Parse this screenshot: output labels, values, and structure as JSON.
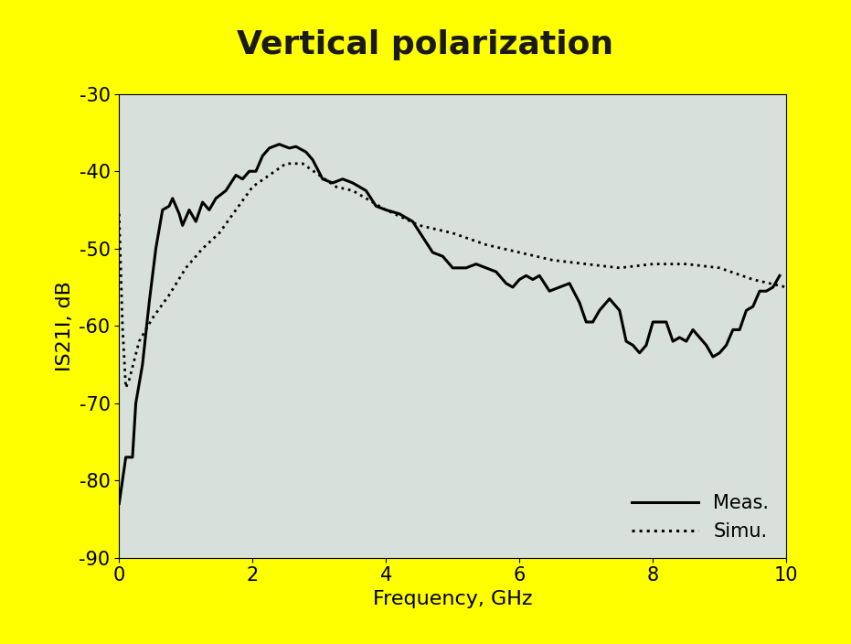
{
  "chart_data": {
    "type": "line",
    "title": "Vertical polarization",
    "x_label": "Frequency, GHz",
    "y_label": "IS21I, dB",
    "xlim": [
      0,
      10
    ],
    "xticks": [
      0,
      2,
      4,
      6,
      8,
      10
    ],
    "ylim": [
      -90,
      -30
    ],
    "yticks": [
      -90,
      -80,
      -70,
      -60,
      -50,
      -40,
      -30
    ],
    "grid": false,
    "legend": "lower right",
    "series": [
      {
        "name": "Meas.",
        "color": "#000000",
        "line_style": "solid",
        "x": [
          0,
          0.05,
          0.1,
          0.15,
          0.2,
          0.25,
          0.35,
          0.45,
          0.55,
          0.65,
          0.75,
          0.8,
          0.9,
          0.95,
          1.05,
          1.15,
          1.25,
          1.35,
          1.45,
          1.6,
          1.75,
          1.85,
          1.95,
          2.05,
          2.15,
          2.25,
          2.4,
          2.55,
          2.65,
          2.8,
          2.9,
          3.05,
          3.2,
          3.35,
          3.5,
          3.7,
          3.85,
          4.0,
          4.2,
          4.4,
          4.55,
          4.7,
          4.85,
          5.0,
          5.2,
          5.35,
          5.5,
          5.65,
          5.8,
          5.9,
          6.0,
          6.1,
          6.2,
          6.3,
          6.45,
          6.6,
          6.75,
          6.9,
          7.0,
          7.1,
          7.2,
          7.35,
          7.5,
          7.6,
          7.7,
          7.8,
          7.9,
          8.0,
          8.1,
          8.2,
          8.3,
          8.4,
          8.5,
          8.6,
          8.7,
          8.8,
          8.9,
          9.0,
          9.1,
          9.2,
          9.3,
          9.4,
          9.5,
          9.6,
          9.7,
          9.8,
          9.9
        ],
        "values": [
          -83,
          -80,
          -77,
          -77,
          -77,
          -70,
          -65,
          -57,
          -50,
          -45,
          -44.5,
          -43.5,
          -45.5,
          -47,
          -45,
          -46.5,
          -44,
          -45,
          -43.5,
          -42.5,
          -40.5,
          -41,
          -40,
          -40,
          -38,
          -37,
          -36.5,
          -37,
          -36.8,
          -37.5,
          -38.5,
          -41,
          -41.5,
          -41,
          -41.5,
          -42.5,
          -44.5,
          -45,
          -45.5,
          -46.5,
          -48.5,
          -50.5,
          -51,
          -52.5,
          -52.5,
          -52,
          -52.5,
          -53,
          -54.5,
          -55,
          -54,
          -53.5,
          -54,
          -53.5,
          -55.5,
          -55,
          -54.5,
          -57,
          -59.5,
          -59.5,
          -58,
          -56.5,
          -58,
          -62,
          -62.5,
          -63.5,
          -62.5,
          -59.5,
          -59.5,
          -59.5,
          -62,
          -61.5,
          -62,
          -60.5,
          -61.5,
          -62.5,
          -64,
          -63.5,
          -62.5,
          -60.5,
          -60.5,
          -58,
          -57.5,
          -55.5,
          -55.5,
          -55,
          -53.5
        ]
      },
      {
        "name": "Simu.",
        "color": "#000000",
        "line_style": "dotted",
        "x": [
          0,
          0.05,
          0.1,
          0.15,
          0.3,
          0.5,
          0.75,
          1.0,
          1.25,
          1.5,
          1.75,
          2.0,
          2.25,
          2.5,
          2.75,
          3.0,
          3.25,
          3.5,
          4.0,
          4.5,
          5.0,
          5.5,
          6.0,
          6.5,
          7.0,
          7.5,
          8.0,
          8.5,
          9.0,
          9.5,
          10
        ],
        "values": [
          -45.5,
          -60,
          -68,
          -67,
          -62,
          -59,
          -56,
          -52.5,
          -50,
          -48,
          -45,
          -42,
          -40.5,
          -39,
          -39,
          -40.5,
          -42,
          -42.5,
          -45,
          -47,
          -48,
          -49.5,
          -50.5,
          -51.5,
          -52,
          -52.5,
          -52,
          -52,
          -52.5,
          -54,
          -55
        ]
      }
    ]
  }
}
